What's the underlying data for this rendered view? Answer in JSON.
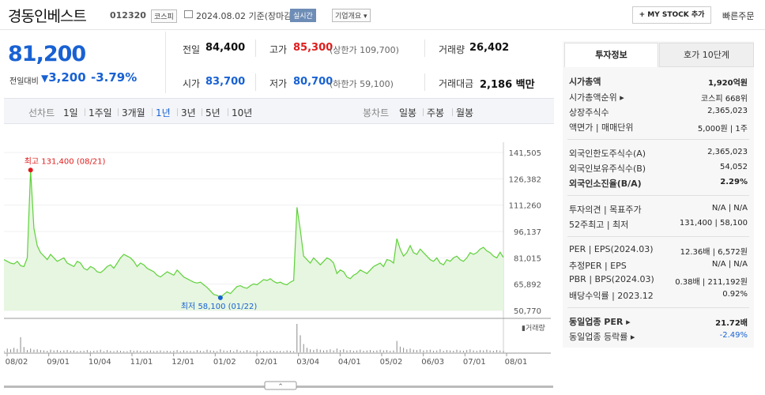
{
  "header": {
    "company": "경동인베스트",
    "code": "012320",
    "market": "코스피",
    "date": "2024.08.02",
    "basis": "기준(장마감)",
    "realtime": "실시간",
    "corp_info": "기업개요 ▾",
    "mystock": "+ MY STOCK 추가",
    "quick_order": "빠른주문"
  },
  "price": {
    "current": "81,200",
    "prev_label": "전일대비",
    "change_arrow": "▼",
    "change": "3,200",
    "change_pct": "-3.79%"
  },
  "summary": {
    "prev_close_label": "전일",
    "prev_close": "84,400",
    "high_label": "고가",
    "high": "85,300",
    "upper_limit": "(상한가 109,700)",
    "volume_label": "거래량",
    "volume": "26,402",
    "open_label": "시가",
    "open": "83,700",
    "low_label": "저가",
    "low": "80,700",
    "lower_limit": "(하한가 59,100)",
    "amount_label": "거래대금",
    "amount": "2,186",
    "amount_unit": "백만"
  },
  "chart_tabs": {
    "line_label": "선차트",
    "periods": [
      "1일",
      "1주일",
      "3개월",
      "1년",
      "3년",
      "5년",
      "10년"
    ],
    "selected": "1년",
    "candle_label": "봉차트",
    "candles": [
      "일봉",
      "주봉",
      "월봉"
    ]
  },
  "chart_data": {
    "type": "area",
    "y_ticks": [
      "141,505",
      "126,382",
      "111,260",
      "96,137",
      "81,015",
      "65,892",
      "50,770"
    ],
    "ylim": [
      50770,
      141505
    ],
    "x_ticks": [
      "08/02",
      "09/01",
      "10/04",
      "11/01",
      "12/01",
      "01/02",
      "02/01",
      "03/04",
      "04/01",
      "05/02",
      "06/03",
      "07/01",
      "08/01"
    ],
    "high_label": "최고 131,400 (08/21)",
    "low_label": "최저 58,100 (01/22)",
    "volume_legend": "거래량",
    "series": [
      {
        "values": [
          80000,
          79000,
          78000,
          77500,
          79000,
          76500,
          76000,
          81000,
          131400,
          98000,
          88000,
          84000,
          82000,
          80000,
          83000,
          81000,
          79000,
          80000,
          81000,
          78000,
          77000,
          76000,
          79000,
          78000,
          75000,
          74000,
          76000,
          75000,
          73000,
          72500,
          74000,
          76000,
          77000,
          75000,
          78000,
          81000,
          83000,
          82000,
          81000,
          79000,
          76000,
          78000,
          77000,
          75000,
          74000,
          73000,
          71000,
          70000,
          71500,
          73000,
          72000,
          71000,
          74000,
          72000,
          70000,
          69000,
          68000,
          67000,
          66500,
          67000,
          65500,
          64000,
          62000,
          60000,
          59500,
          58100,
          60000,
          61500,
          60500,
          62500,
          64500,
          65000,
          64000,
          63500,
          65000,
          66000,
          65500,
          67000,
          68500,
          68000,
          69000,
          67500,
          66500,
          67000,
          66000,
          65500,
          67000,
          68000,
          110000,
          97000,
          82000,
          80000,
          78000,
          81000,
          79000,
          77000,
          79000,
          81000,
          80000,
          78000,
          72000,
          74000,
          73000,
          70000,
          69000,
          71000,
          72000,
          74000,
          73000,
          72000,
          74000,
          76000,
          77000,
          78000,
          76000,
          80000,
          79500,
          78000,
          92000,
          86000,
          82000,
          84000,
          88000,
          84000,
          83000,
          86000,
          84000,
          82000,
          80000,
          79000,
          81000,
          78000,
          77000,
          80000,
          79000,
          81000,
          82000,
          80000,
          79000,
          81000,
          84000,
          83000,
          84000,
          86000,
          87000,
          85000,
          84000,
          82000,
          81000,
          84200,
          81200
        ]
      }
    ],
    "volumes": [
      4,
      10,
      8,
      12,
      9,
      40,
      14,
      6,
      10,
      7,
      8,
      6,
      5,
      4,
      7,
      5,
      6,
      4,
      5,
      6,
      4,
      5,
      3,
      4,
      4,
      6,
      3,
      4,
      5,
      7,
      3,
      6,
      4,
      3,
      5,
      4,
      3,
      3,
      6,
      4,
      5,
      4,
      3,
      4,
      5,
      3,
      4,
      5,
      3,
      4,
      3,
      4,
      6,
      3,
      5,
      4,
      4,
      3,
      6,
      4,
      3,
      7,
      5,
      4,
      3,
      8,
      5,
      4,
      6,
      3,
      7,
      4,
      3,
      6,
      4,
      3,
      5,
      3,
      4,
      3,
      5,
      4,
      3,
      4,
      3,
      5,
      4,
      3,
      75,
      45,
      22,
      12,
      8,
      6,
      9,
      7,
      5,
      6,
      8,
      5,
      10,
      6,
      8,
      5,
      6,
      4,
      5,
      7,
      4,
      5,
      6,
      4,
      5,
      7,
      5,
      6,
      4,
      5,
      30,
      15,
      12,
      8,
      10,
      7,
      6,
      8,
      5,
      6,
      7,
      4,
      5,
      8,
      4,
      6,
      5,
      4,
      7,
      5,
      4,
      6,
      8,
      5,
      4,
      6,
      5,
      7,
      5,
      4,
      6,
      5,
      4
    ]
  },
  "right_panel": {
    "tab_active": "투자정보",
    "tab_other": "호가 10단계",
    "rows": [
      {
        "label": "시가총액",
        "value": "1,920억원",
        "bold": true
      },
      {
        "label": "시가총액순위 ▸",
        "value": "코스피 668위"
      },
      {
        "label": "상장주식수",
        "value": "2,365,023"
      },
      {
        "label": "액면가 | 매매단위",
        "value": "5,000원 | 1주"
      },
      {
        "label": "외국인한도주식수(A)",
        "value": "2,365,023"
      },
      {
        "label": "외국인보유주식수(B)",
        "value": "54,052"
      },
      {
        "label": "외국인소진율(B/A)",
        "value": "2.29%",
        "bold": true
      },
      {
        "label": "투자의견 | 목표주가",
        "value": "N/A | N/A"
      },
      {
        "label": "52주최고 | 최저",
        "value": "131,400 | 58,100"
      },
      {
        "label": "PER | EPS(2024.03)",
        "value": "12.36배 | 6,572원"
      },
      {
        "label": "추정PER | EPS",
        "value": "N/A | N/A"
      },
      {
        "label": "PBR | BPS(2024.03)",
        "value": "0.38배 | 211,192원"
      },
      {
        "label": "배당수익률 | 2023.12",
        "value": "0.92%"
      },
      {
        "label": "동일업종 PER ▸",
        "value": "21.72배",
        "bold": true
      },
      {
        "label": "동일업종 등락률 ▸",
        "value": "-2.49%",
        "blue": true
      }
    ]
  },
  "colors": {
    "accent_blue": "#1861d3",
    "up_red": "#e01c1c",
    "chart_line": "#5fd13a",
    "chart_fill": "#e6f6e0"
  }
}
